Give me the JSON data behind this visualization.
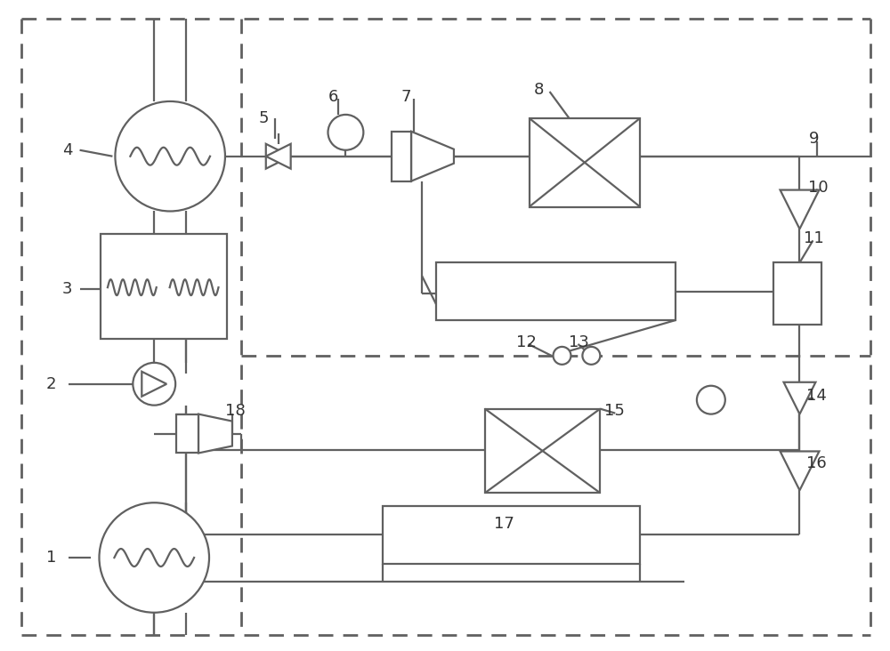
{
  "bg": "#ffffff",
  "lc": "#606060",
  "lw": 1.6,
  "fw": 10.0,
  "fh": 7.32,
  "dpi": 100
}
